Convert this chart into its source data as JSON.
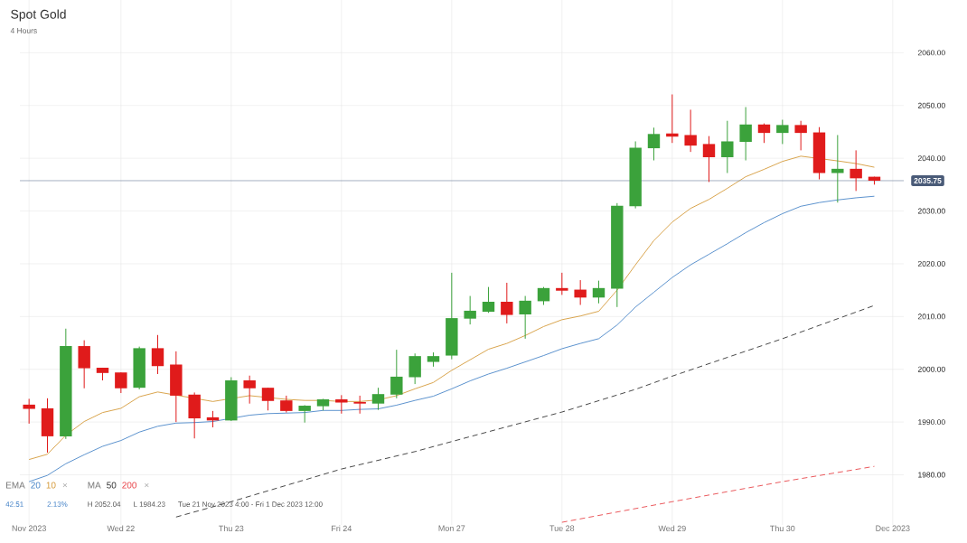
{
  "chart_data": {
    "type": "candlestick",
    "title": "Spot Gold",
    "subtitle": "4 Hours",
    "categories": [
      "Nov 2023",
      null,
      null,
      null,
      null,
      "Wed 22",
      null,
      null,
      null,
      null,
      null,
      "Thu 23",
      null,
      null,
      null,
      null,
      null,
      "Fri 24",
      null,
      null,
      null,
      null,
      null,
      "Mon 27",
      null,
      null,
      null,
      null,
      null,
      "Tue 28",
      null,
      null,
      null,
      null,
      null,
      "Wed 29",
      null,
      null,
      null,
      null,
      null,
      "Thu 30",
      null,
      null,
      null,
      null,
      null,
      "Dec 2023"
    ],
    "ohlc": [
      [
        1993.3,
        1994.4,
        1989.7,
        1992.5
      ],
      [
        1992.6,
        1994.5,
        1984.2,
        1987.3
      ],
      [
        1987.3,
        2007.7,
        1986.8,
        2004.4
      ],
      [
        2004.4,
        2005.5,
        1996.4,
        2000.2
      ],
      [
        2000.3,
        2000.3,
        1997.9,
        1999.3
      ],
      [
        1999.4,
        1999.4,
        1995.5,
        1996.4
      ],
      [
        1996.5,
        2004.3,
        1996.2,
        2004.0
      ],
      [
        2004.0,
        2006.5,
        1999.1,
        2000.6
      ],
      [
        2000.9,
        2003.4,
        1990.0,
        1995.0
      ],
      [
        1995.2,
        1995.6,
        1986.9,
        1990.7
      ],
      [
        1990.9,
        1992.1,
        1989.0,
        1990.3
      ],
      [
        1990.3,
        1998.5,
        1990.2,
        1997.9
      ],
      [
        1997.9,
        1998.8,
        1993.5,
        1996.4
      ],
      [
        1996.5,
        1996.5,
        1992.2,
        1994.0
      ],
      [
        1994.1,
        1995.0,
        1991.8,
        1992.1
      ],
      [
        1992.1,
        1993.2,
        1989.9,
        1993.1
      ],
      [
        1993.0,
        1994.4,
        1992.2,
        1994.3
      ],
      [
        1994.3,
        1995.1,
        1991.6,
        1993.7
      ],
      [
        1993.8,
        1995.0,
        1991.6,
        1993.5
      ],
      [
        1993.5,
        1996.5,
        1992.3,
        1995.3
      ],
      [
        1995.2,
        2003.7,
        1994.5,
        1998.6
      ],
      [
        1998.5,
        2003.0,
        1997.2,
        2002.5
      ],
      [
        2001.4,
        2003.2,
        2000.5,
        2002.5
      ],
      [
        2002.6,
        2018.3,
        2001.9,
        2009.7
      ],
      [
        2009.6,
        2013.9,
        2008.5,
        2011.1
      ],
      [
        2010.9,
        2015.6,
        2010.7,
        2012.8
      ],
      [
        2012.8,
        2016.4,
        2008.7,
        2010.3
      ],
      [
        2010.4,
        2013.9,
        2005.8,
        2013.0
      ],
      [
        2012.9,
        2015.6,
        2012.2,
        2015.4
      ],
      [
        2015.4,
        2018.3,
        2014.1,
        2014.9
      ],
      [
        2015.1,
        2016.9,
        2012.2,
        2013.6
      ],
      [
        2013.6,
        2016.8,
        2012.5,
        2015.4
      ],
      [
        2015.3,
        2031.5,
        2011.8,
        2031.0
      ],
      [
        2030.9,
        2043.2,
        2030.5,
        2042.0
      ],
      [
        2041.9,
        2045.8,
        2039.6,
        2044.6
      ],
      [
        2044.7,
        2052.1,
        2042.9,
        2044.1
      ],
      [
        2044.4,
        2049.2,
        2041.2,
        2042.4
      ],
      [
        2042.7,
        2044.2,
        2035.5,
        2040.2
      ],
      [
        2040.2,
        2047.1,
        2037.2,
        2043.2
      ],
      [
        2043.1,
        2049.7,
        2039.6,
        2046.4
      ],
      [
        2046.4,
        2046.6,
        2042.9,
        2044.8
      ],
      [
        2044.8,
        2047.3,
        2042.7,
        2046.3
      ],
      [
        2046.3,
        2047.1,
        2041.5,
        2044.8
      ],
      [
        2044.9,
        2045.9,
        2036.0,
        2037.2
      ],
      [
        2037.2,
        2044.4,
        2031.6,
        2038.0
      ],
      [
        2038.0,
        2041.5,
        2033.8,
        2036.2
      ],
      [
        2036.5,
        2036.5,
        2035.0,
        2035.75
      ],
      null
    ],
    "colors": [
      "#e01b1b",
      "#e01b1b",
      "#3ba23b",
      "#e01b1b",
      "#e01b1b",
      "#e01b1b",
      "#3ba23b",
      "#e01b1b",
      "#e01b1b",
      "#e01b1b",
      "#e01b1b",
      "#3ba23b",
      "#e01b1b",
      "#e01b1b",
      "#e01b1b",
      "#3ba23b",
      "#3ba23b",
      "#e01b1b",
      "#e01b1b",
      "#3ba23b",
      "#3ba23b",
      "#3ba23b",
      "#3ba23b",
      "#3ba23b",
      "#3ba23b",
      "#3ba23b",
      "#e01b1b",
      "#3ba23b",
      "#3ba23b",
      "#e01b1b",
      "#e01b1b",
      "#3ba23b",
      "#3ba23b",
      "#3ba23b",
      "#3ba23b",
      "#e01b1b",
      "#e01b1b",
      "#e01b1b",
      "#3ba23b",
      "#3ba23b",
      "#e01b1b",
      "#3ba23b",
      "#e01b1b",
      "#e01b1b",
      "#3ba23b",
      "#e01b1b",
      "#e01b1b",
      null
    ],
    "series": [
      {
        "name": "20",
        "type": "line",
        "color": "#4a86c8",
        "line_style": "solid",
        "values": [
          1978.7,
          1979.9,
          1982.1,
          1983.8,
          1985.4,
          1986.5,
          1988.1,
          1989.2,
          1989.8,
          1989.9,
          1990.1,
          null,
          1991.3,
          1991.6,
          1991.7,
          1991.8,
          1992.2,
          1992.2,
          1992.4,
          1992.5,
          1993.2,
          1994.1,
          1994.9,
          1996.3,
          1997.8,
          1999.1,
          2000.2,
          2001.4,
          2002.6,
          2003.9,
          2004.9,
          2005.8,
          2008.4,
          2011.8,
          2014.6,
          2017.4,
          2019.8,
          2021.8,
          2023.8,
          2025.9,
          2027.8,
          2029.5,
          2030.9,
          2031.6,
          2032.1,
          2032.5,
          2032.8,
          null
        ]
      },
      {
        "name": "10",
        "type": "line",
        "color": "#d59a3a",
        "line_style": "solid",
        "values": [
          1982.9,
          1983.9,
          1987.5,
          1990.1,
          1991.8,
          1992.6,
          1994.8,
          1995.7,
          null,
          null,
          1993.9,
          null,
          1995.0,
          null,
          1994.3,
          1994.1,
          1994.1,
          1993.9,
          1993.9,
          1994.2,
          1995.0,
          1996.3,
          1997.5,
          1999.8,
          2001.8,
          2003.8,
          2004.9,
          2006.4,
          2008.1,
          2009.4,
          2010.1,
          2011.0,
          2015.0,
          2019.8,
          2024.4,
          2027.9,
          2030.5,
          2032.2,
          2034.3,
          2036.5,
          2037.9,
          2039.4,
          2040.4,
          null,
          2039.5,
          2039.0,
          2038.3,
          null
        ]
      },
      {
        "name": "50",
        "type": "line",
        "color": "#333333",
        "line_style": "dashed",
        "values": [
          null,
          null,
          null,
          null,
          null,
          null,
          null,
          null,
          1972.0,
          null,
          null,
          1974.9,
          null,
          null,
          null,
          null,
          null,
          1981.1,
          null,
          null,
          null,
          1984.4,
          null,
          1986.3,
          null,
          null,
          null,
          null,
          null,
          1991.9,
          null,
          null,
          null,
          1996.2,
          null,
          1998.7,
          null,
          null,
          null,
          null,
          null,
          2005.8,
          null,
          null,
          null,
          null,
          2012.1,
          null
        ]
      },
      {
        "name": "200",
        "type": "line",
        "color": "#e8454a",
        "line_style": "dashed",
        "values": [
          null,
          null,
          null,
          null,
          null,
          null,
          null,
          null,
          null,
          null,
          null,
          null,
          null,
          null,
          null,
          null,
          null,
          null,
          null,
          null,
          null,
          null,
          null,
          null,
          null,
          null,
          null,
          null,
          null,
          1971.0,
          null,
          null,
          null,
          null,
          null,
          1974.9,
          null,
          null,
          null,
          null,
          null,
          1978.7,
          null,
          null,
          null,
          null,
          1981.6,
          null
        ]
      }
    ],
    "ylim": [
      1970.5,
      2070
    ],
    "yticks": [
      {
        "value": 1980,
        "label": "1980.00"
      },
      {
        "value": 1990,
        "label": "1990.00"
      },
      {
        "value": 2000,
        "label": "2000.00"
      },
      {
        "value": 2010,
        "label": "2010.00"
      },
      {
        "value": 2020,
        "label": "2020.00"
      },
      {
        "value": 2030,
        "label": "2030.00"
      },
      {
        "value": 2040,
        "label": "2040.00"
      },
      {
        "value": 2050,
        "label": "2050.00"
      },
      {
        "value": 2060,
        "label": "2060.00"
      }
    ],
    "ref_lines": [
      {
        "axis": "y",
        "value": 2035.75,
        "label": "2035.75",
        "color": "#7d8fa6"
      }
    ],
    "annotations": [
      "EMA",
      "×",
      "MA",
      "×",
      "42.51",
      "2.13%",
      "H 2052.04",
      "L 1984.23",
      "Tue 21 Nov 2023 4:00 - Fri 1 Dec 2023 12:00"
    ],
    "grid": true,
    "legend": "bottom left"
  }
}
